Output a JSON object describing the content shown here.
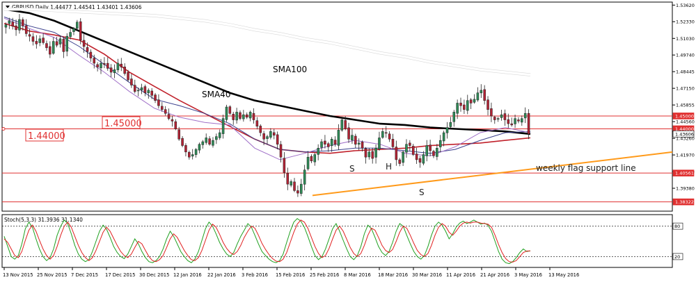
{
  "price_panel": {
    "title": "GBPUSD.Daily  1.44477 1.44541 1.43401 1.43606",
    "ohlc": {
      "open": 1.44477,
      "high": 1.44541,
      "low": 1.43401,
      "close": 1.43606
    }
  },
  "stoch_panel": {
    "title": "Stoch(5,3,3) 31.3936 31.1340",
    "levels": [
      80,
      20
    ]
  },
  "annotations": {
    "sma100": "SMA100",
    "sma40": "SMA40",
    "level_1_45": "1.45000",
    "level_1_44": "1.44000",
    "s1": "S",
    "h": "H",
    "s2": "S",
    "flag": "weekly flag support line"
  },
  "colors": {
    "bull": "#2e8b57",
    "bear": "#b22234",
    "sma100": "#000000",
    "sma_long": "#ffffff",
    "sma40": "#c0202a",
    "sma20": "#3a3f8c",
    "sma10": "#a070c8",
    "support_line": "#ff9a1a",
    "hline": "#e03030",
    "stoch_main": "#1fa01f",
    "stoch_signal": "#e02020"
  },
  "chart_data": [
    {
      "type": "candlestick",
      "symbol": "GBPUSD",
      "timeframe": "Daily",
      "ylim": [
        1.376,
        1.538
      ],
      "y_ticks": [
        "1.53620",
        "1.52330",
        "1.51030",
        "1.49740",
        "1.48445",
        "1.47150",
        "1.45855",
        "1.44560",
        "1.43260",
        "1.41970",
        "1.40670",
        "1.39380"
      ],
      "price_tags": [
        {
          "label": "1.45000",
          "kind": "line"
        },
        {
          "label": "1.44000",
          "kind": "line"
        },
        {
          "label": "1.43606",
          "kind": "current"
        },
        {
          "label": "1.40561",
          "kind": "line"
        },
        {
          "label": "1.38322",
          "kind": "line"
        }
      ],
      "x_labels": [
        "13 Nov 2015",
        "25 Nov 2015",
        "7 Dec 2015",
        "17 Dec 2015",
        "30 Dec 2015",
        "12 Jan 2016",
        "22 Jan 2016",
        "3 Feb 2016",
        "15 Feb 2016",
        "25 Feb 2016",
        "8 Mar 2016",
        "18 Mar 2016",
        "30 Mar 2016",
        "11 Apr 2016",
        "21 Apr 2016",
        "3 May 2016",
        "13 May 2016"
      ],
      "close_path": [
        1.521,
        1.524,
        1.52,
        1.517,
        1.525,
        1.52,
        1.514,
        1.512,
        1.508,
        1.506,
        1.51,
        1.507,
        1.503,
        1.498,
        1.508,
        1.505,
        1.51,
        1.5,
        1.512,
        1.515,
        1.518,
        1.523,
        1.509,
        1.504,
        1.5,
        1.495,
        1.491,
        1.488,
        1.491,
        1.49,
        1.487,
        1.484,
        1.486,
        1.491,
        1.488,
        1.483,
        1.478,
        1.474,
        1.469,
        1.47,
        1.472,
        1.468,
        1.47,
        1.466,
        1.462,
        1.458,
        1.455,
        1.452,
        1.448,
        1.446,
        1.44,
        1.432,
        1.427,
        1.422,
        1.418,
        1.42,
        1.424,
        1.428,
        1.43,
        1.433,
        1.428,
        1.431,
        1.434,
        1.437,
        1.448,
        1.457,
        1.452,
        1.447,
        1.453,
        1.448,
        1.451,
        1.449,
        1.453,
        1.447,
        1.442,
        1.437,
        1.432,
        1.434,
        1.438,
        1.435,
        1.428,
        1.418,
        1.406,
        1.397,
        1.399,
        1.392,
        1.39,
        1.397,
        1.408,
        1.418,
        1.415,
        1.42,
        1.425,
        1.43,
        1.428,
        1.426,
        1.432,
        1.428,
        1.439,
        1.447,
        1.44,
        1.432,
        1.435,
        1.428,
        1.429,
        1.425,
        1.418,
        1.422,
        1.417,
        1.425,
        1.433,
        1.438,
        1.437,
        1.432,
        1.426,
        1.416,
        1.413,
        1.422,
        1.428,
        1.427,
        1.42,
        1.416,
        1.414,
        1.42,
        1.427,
        1.423,
        1.419,
        1.425,
        1.431,
        1.437,
        1.441,
        1.445,
        1.453,
        1.46,
        1.458,
        1.455,
        1.462,
        1.46,
        1.463,
        1.468,
        1.47,
        1.462,
        1.455,
        1.45,
        1.447,
        1.448,
        1.451,
        1.447,
        1.444,
        1.443,
        1.448,
        1.446,
        1.448,
        1.452,
        1.436
      ],
      "ma_lines": [
        {
          "name": "SMA100",
          "values": [
            1.533,
            1.53,
            1.524,
            1.516,
            1.508,
            1.5,
            1.492,
            1.484,
            1.476,
            1.468,
            1.462,
            1.458,
            1.454,
            1.45,
            1.447,
            1.444,
            1.443,
            1.441,
            1.44,
            1.439,
            1.438,
            1.436
          ]
        },
        {
          "name": "",
          "values": [
            1.533,
            1.533,
            1.532,
            1.531,
            1.53,
            1.529,
            1.528,
            1.526,
            1.524,
            1.521,
            1.517,
            1.514,
            1.51,
            1.507,
            1.503,
            1.499,
            1.496,
            1.492,
            1.489,
            1.486,
            1.484,
            1.482
          ]
        },
        {
          "name": "SMA40",
          "values": [
            1.522,
            1.516,
            1.513,
            1.509,
            1.498,
            1.484,
            1.473,
            1.462,
            1.452,
            1.442,
            1.432,
            1.424,
            1.422,
            1.421,
            1.423,
            1.424,
            1.425,
            1.427,
            1.428,
            1.429,
            1.431,
            1.433
          ]
        },
        {
          "name": "",
          "values": [
            1.527,
            1.52,
            1.515,
            1.504,
            1.49,
            1.476,
            1.463,
            1.458,
            1.452,
            1.444,
            1.432,
            1.424,
            1.422,
            1.423,
            1.425,
            1.425,
            1.423,
            1.421,
            1.424,
            1.431,
            1.437,
            1.438
          ]
        },
        {
          "name": "",
          "values": [
            1.526,
            1.518,
            1.511,
            1.497,
            1.484,
            1.469,
            1.456,
            1.449,
            1.445,
            1.443,
            1.425,
            1.416,
            1.421,
            1.427,
            1.431,
            1.428,
            1.421,
            1.419,
            1.426,
            1.437,
            1.441,
            1.437
          ]
        }
      ],
      "support_line": {
        "from": {
          "x": "25 Feb 2016",
          "y": 1.3882
        },
        "to": {
          "x": "13 May 2016",
          "y": 1.4105
        }
      }
    },
    {
      "type": "line",
      "title": "Stoch(5,3,3)",
      "ylim": [
        0,
        100
      ],
      "levels": [
        80,
        20
      ],
      "series": [
        {
          "name": "",
          "values": [
            60,
            40,
            20,
            15,
            22,
            45,
            75,
            88,
            78,
            55,
            35,
            20,
            12,
            18,
            35,
            62,
            80,
            92,
            85,
            65,
            42,
            25,
            15,
            10,
            14,
            30,
            50,
            70,
            82,
            74,
            58,
            40,
            28,
            20,
            16,
            25,
            40,
            55,
            45,
            30,
            18,
            10,
            8,
            12,
            20,
            35,
            55,
            70,
            60,
            45,
            30,
            20,
            12,
            8,
            15,
            30,
            52,
            75,
            88,
            80,
            65,
            48,
            35,
            25,
            20,
            28,
            45,
            60,
            72,
            85,
            78,
            62,
            45,
            30,
            22,
            15,
            10,
            8,
            12,
            25,
            48,
            70,
            88,
            95,
            90,
            78,
            60,
            40,
            22,
            14,
            20,
            35,
            55,
            75,
            85,
            70,
            52,
            35,
            20,
            14,
            22,
            40,
            65,
            82,
            75,
            58,
            40,
            28,
            22,
            30,
            48,
            70,
            85,
            80,
            62,
            45,
            30,
            20,
            15,
            22,
            40,
            62,
            80,
            88,
            82,
            70,
            55,
            65,
            78,
            86,
            90,
            85,
            88,
            92,
            88,
            84,
            86,
            82,
            70,
            50,
            30,
            15,
            8,
            6,
            10,
            18,
            28,
            35,
            30,
            31.39
          ]
        },
        {
          "name": "",
          "values": [
            55,
            48,
            35,
            22,
            18,
            30,
            52,
            72,
            82,
            70,
            52,
            35,
            22,
            15,
            22,
            40,
            62,
            80,
            88,
            78,
            60,
            42,
            28,
            18,
            12,
            18,
            32,
            50,
            68,
            78,
            70,
            56,
            42,
            30,
            22,
            18,
            25,
            38,
            50,
            45,
            32,
            20,
            12,
            10,
            14,
            22,
            38,
            55,
            65,
            58,
            45,
            32,
            22,
            14,
            12,
            18,
            32,
            52,
            72,
            84,
            78,
            64,
            48,
            36,
            28,
            24,
            30,
            42,
            58,
            70,
            80,
            76,
            62,
            46,
            34,
            24,
            16,
            11,
            10,
            15,
            28,
            48,
            68,
            84,
            92,
            88,
            76,
            58,
            40,
            26,
            18,
            22,
            36,
            55,
            72,
            80,
            70,
            54,
            38,
            26,
            20,
            26,
            42,
            62,
            76,
            72,
            58,
            42,
            32,
            28,
            34,
            50,
            68,
            80,
            76,
            62,
            46,
            32,
            24,
            20,
            26,
            42,
            62,
            78,
            85,
            80,
            68,
            62,
            70,
            80,
            86,
            88,
            86,
            88,
            88,
            86,
            85,
            84,
            78,
            62,
            44,
            28,
            16,
            10,
            9,
            12,
            20,
            28,
            31,
            31.13
          ]
        }
      ]
    }
  ]
}
